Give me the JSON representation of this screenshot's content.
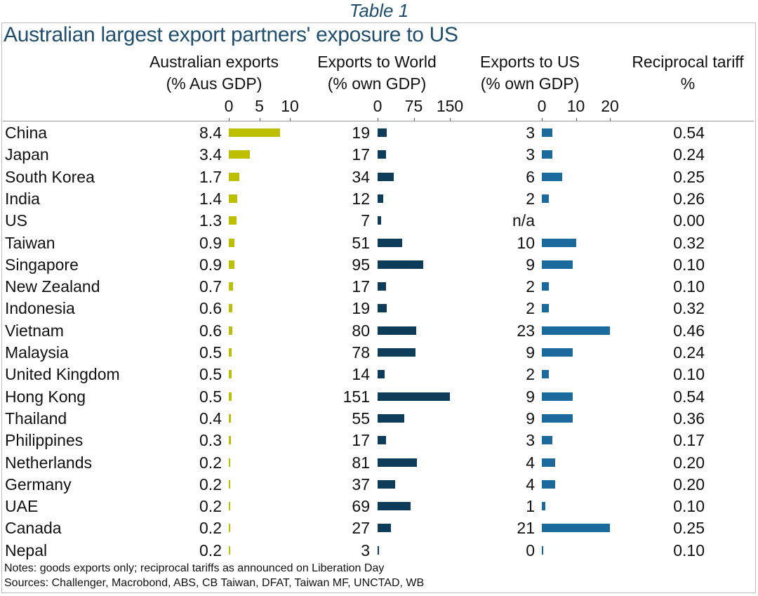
{
  "caption": "Table 1",
  "chart_data": {
    "type": "table",
    "title": "Australian largest export partners' exposure to US",
    "columns": [
      {
        "key": "aus_exports",
        "label_line1": "Australian exports",
        "label_line2": "(% Aus GDP)",
        "ticks": [
          "0",
          "5",
          "10"
        ],
        "range": [
          0,
          10
        ],
        "bar": true,
        "color": "#bcc000"
      },
      {
        "key": "world",
        "label_line1": "Exports to World",
        "label_line2": "(% own GDP)",
        "ticks": [
          "0",
          "75",
          "150"
        ],
        "range": [
          0,
          150
        ],
        "bar": true,
        "color": "#0d3c5a"
      },
      {
        "key": "us",
        "label_line1": "Exports to US",
        "label_line2": "(% own GDP)",
        "ticks": [
          "0",
          "10",
          "20"
        ],
        "range": [
          0,
          20
        ],
        "bar": true,
        "color": "#1a6a9e"
      },
      {
        "key": "tariff",
        "label_line1": "Reciprocal tariff",
        "label_line2": "%",
        "bar": false
      }
    ],
    "rows": [
      {
        "country": "China",
        "aus_exports": "8.4",
        "world": "19",
        "us": "3",
        "tariff": "0.54"
      },
      {
        "country": "Japan",
        "aus_exports": "3.4",
        "world": "17",
        "us": "3",
        "tariff": "0.24"
      },
      {
        "country": "South Korea",
        "aus_exports": "1.7",
        "world": "34",
        "us": "6",
        "tariff": "0.25"
      },
      {
        "country": "India",
        "aus_exports": "1.4",
        "world": "12",
        "us": "2",
        "tariff": "0.26"
      },
      {
        "country": "US",
        "aus_exports": "1.3",
        "world": "7",
        "us": "n/a",
        "tariff": "0.00"
      },
      {
        "country": "Taiwan",
        "aus_exports": "0.9",
        "world": "51",
        "us": "10",
        "tariff": "0.32"
      },
      {
        "country": "Singapore",
        "aus_exports": "0.9",
        "world": "95",
        "us": "9",
        "tariff": "0.10"
      },
      {
        "country": "New Zealand",
        "aus_exports": "0.7",
        "world": "17",
        "us": "2",
        "tariff": "0.10"
      },
      {
        "country": "Indonesia",
        "aus_exports": "0.6",
        "world": "19",
        "us": "2",
        "tariff": "0.32"
      },
      {
        "country": "Vietnam",
        "aus_exports": "0.6",
        "world": "80",
        "us": "23",
        "tariff": "0.46"
      },
      {
        "country": "Malaysia",
        "aus_exports": "0.5",
        "world": "78",
        "us": "9",
        "tariff": "0.24"
      },
      {
        "country": "United Kingdom",
        "aus_exports": "0.5",
        "world": "14",
        "us": "2",
        "tariff": "0.10"
      },
      {
        "country": "Hong Kong",
        "aus_exports": "0.5",
        "world": "151",
        "us": "9",
        "tariff": "0.54"
      },
      {
        "country": "Thailand",
        "aus_exports": "0.4",
        "world": "55",
        "us": "9",
        "tariff": "0.36"
      },
      {
        "country": "Philippines",
        "aus_exports": "0.3",
        "world": "17",
        "us": "3",
        "tariff": "0.17"
      },
      {
        "country": "Netherlands",
        "aus_exports": "0.2",
        "world": "81",
        "us": "4",
        "tariff": "0.20"
      },
      {
        "country": "Germany",
        "aus_exports": "0.2",
        "world": "37",
        "us": "4",
        "tariff": "0.20"
      },
      {
        "country": "UAE",
        "aus_exports": "0.2",
        "world": "69",
        "us": "1",
        "tariff": "0.10"
      },
      {
        "country": "Canada",
        "aus_exports": "0.2",
        "world": "27",
        "us": "21",
        "tariff": "0.25"
      },
      {
        "country": "Nepal",
        "aus_exports": "0.2",
        "world": "3",
        "us": "0",
        "tariff": "0.10"
      }
    ]
  },
  "notes": "Notes: goods exports only; reciprocal tariffs as announced on Liberation Day",
  "sources": "Sources: Challenger, Macrobond, ABS, CB Taiwan, DFAT, Taiwan MF, UNCTAD, WB"
}
